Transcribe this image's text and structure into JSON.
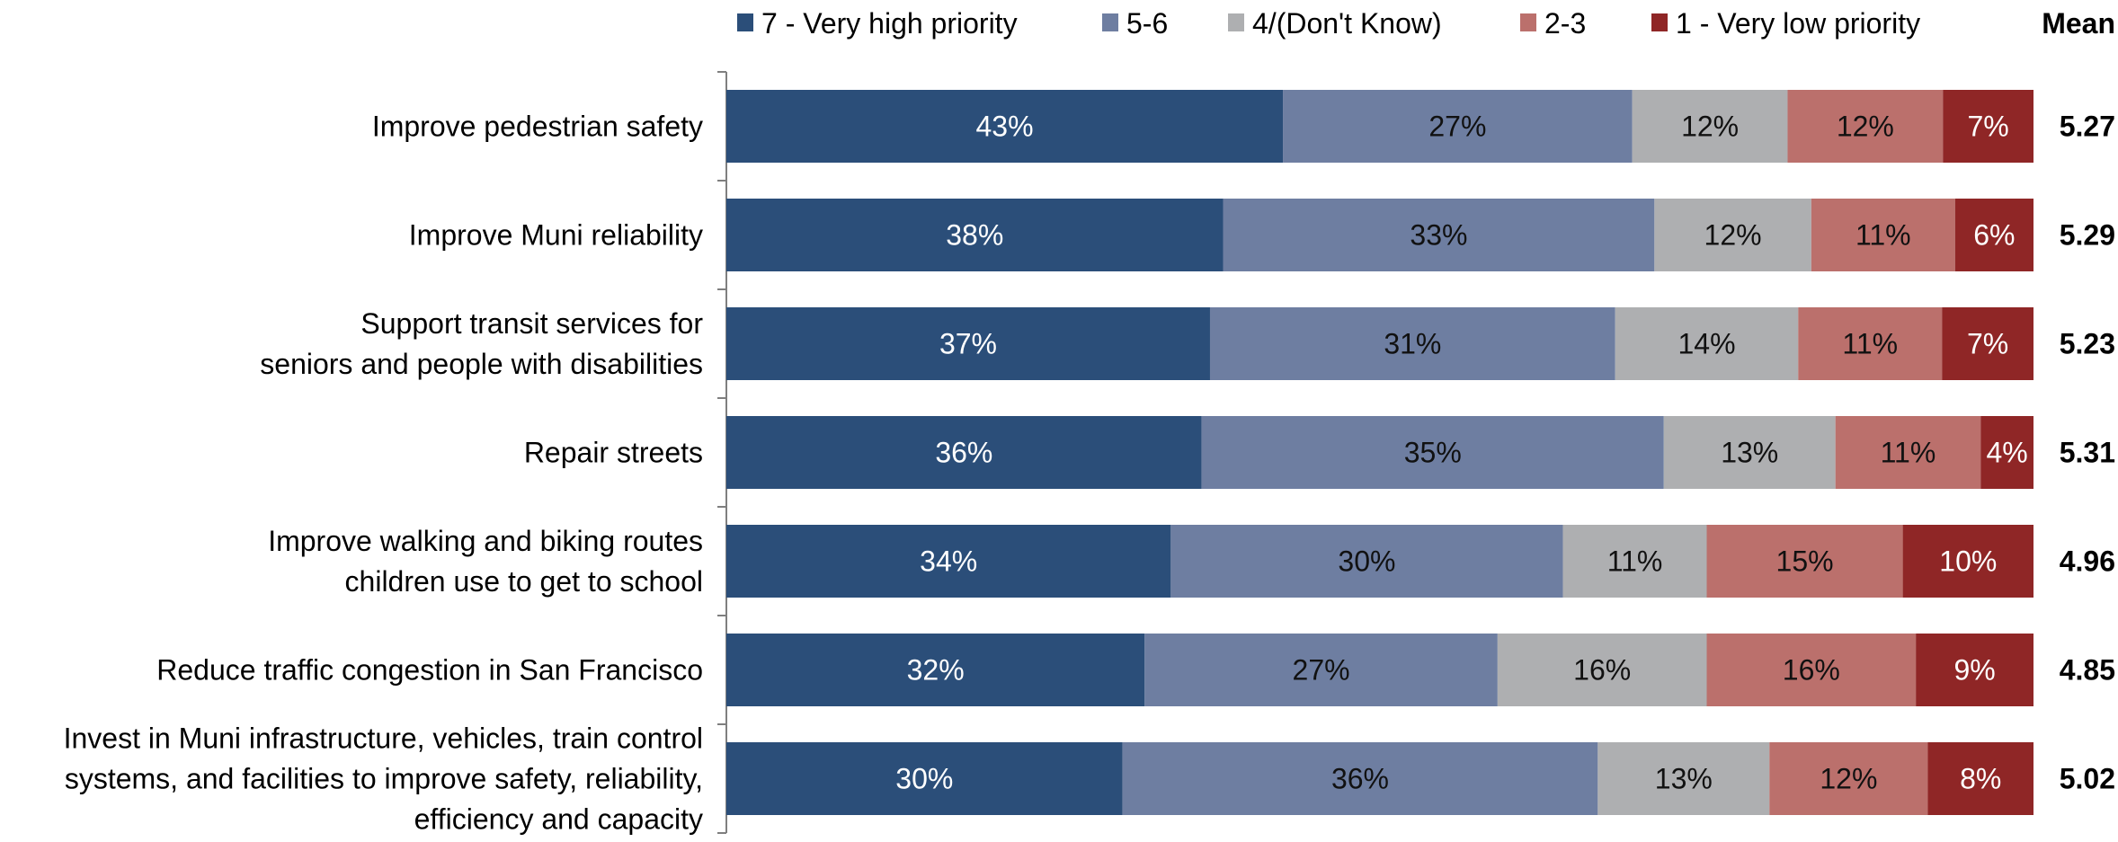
{
  "chart_data": {
    "type": "bar",
    "orientation": "horizontal",
    "stacked": true,
    "percent_stacked": true,
    "legend_position": "top",
    "grid": false,
    "mean_header": "Mean",
    "categories": [
      [
        "Improve pedestrian safety"
      ],
      [
        "Improve Muni reliability"
      ],
      [
        "Support transit services for",
        "seniors and people with disabilities"
      ],
      [
        "Repair streets"
      ],
      [
        "Improve walking and biking routes",
        "children use to get to school"
      ],
      [
        "Reduce traffic congestion in San Francisco"
      ],
      [
        "Invest in Muni infrastructure, vehicles, train control",
        "systems, and facilities to improve safety, reliability,",
        "efficiency and capacity"
      ]
    ],
    "series": [
      {
        "name": "7 - Very high priority",
        "color": "#2b4e79",
        "label_color": "#ffffff",
        "values": [
          43,
          38,
          37,
          36,
          34,
          32,
          30
        ]
      },
      {
        "name": "5-6",
        "color": "#6e7ea1",
        "label_color": "#111111",
        "values": [
          27,
          33,
          31,
          35,
          30,
          27,
          36
        ]
      },
      {
        "name": "4/(Don't Know)",
        "color": "#aeafb1",
        "label_color": "#111111",
        "values": [
          12,
          12,
          14,
          13,
          11,
          16,
          13
        ]
      },
      {
        "name": "2-3",
        "color": "#bb706c",
        "label_color": "#111111",
        "values": [
          12,
          11,
          11,
          11,
          15,
          16,
          12
        ]
      },
      {
        "name": "1 - Very low priority",
        "color": "#8f2626",
        "label_color": "#ffffff",
        "values": [
          7,
          6,
          7,
          4,
          10,
          9,
          8
        ]
      }
    ],
    "means": [
      "5.27",
      "5.29",
      "5.23",
      "5.31",
      "4.96",
      "4.85",
      "5.02"
    ],
    "value_suffix": "%"
  }
}
